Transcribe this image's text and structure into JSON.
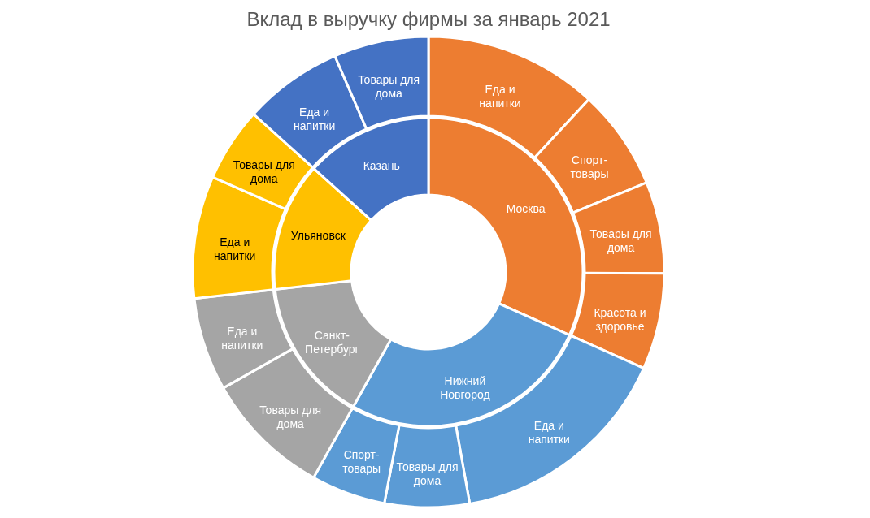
{
  "chart_data": [
    {
      "type": "donut",
      "title": "Вклад в выручку фирмы за январь 2021",
      "categories": [
        "Москва",
        "Нижний Новгород",
        "Санкт-Петербург",
        "Ульяновск",
        "Казань"
      ],
      "values": [
        31.7,
        26.4,
        15.1,
        13.5,
        13.3
      ],
      "colors": [
        "#ed7d31",
        "#5b9bd5",
        "#a5a5a5",
        "#ffc000",
        "#4472c4"
      ]
    },
    {
      "type": "donut",
      "categories": [
        "Еда и напитки",
        "Спорт-товары",
        "Товары для дома",
        "Красота и здоровье",
        "Еда и напитки",
        "Товары для дома",
        "Спорт-товары",
        "Товары для дома",
        "Еда и напитки",
        "Еда и напитки",
        "Товары для дома",
        "Еда и напитки",
        "Товары для дома"
      ],
      "values": [
        11.9,
        6.9,
        6.3,
        6.6,
        15.5,
        5.8,
        5.1,
        8.7,
        6.4,
        8.4,
        5.1,
        6.8,
        6.5
      ],
      "colors": [
        "#ed7d31",
        "#ed7d31",
        "#ed7d31",
        "#ed7d31",
        "#5b9bd5",
        "#5b9bd5",
        "#5b9bd5",
        "#a5a5a5",
        "#a5a5a5",
        "#ffc000",
        "#ffc000",
        "#4472c4",
        "#4472c4"
      ]
    }
  ]
}
